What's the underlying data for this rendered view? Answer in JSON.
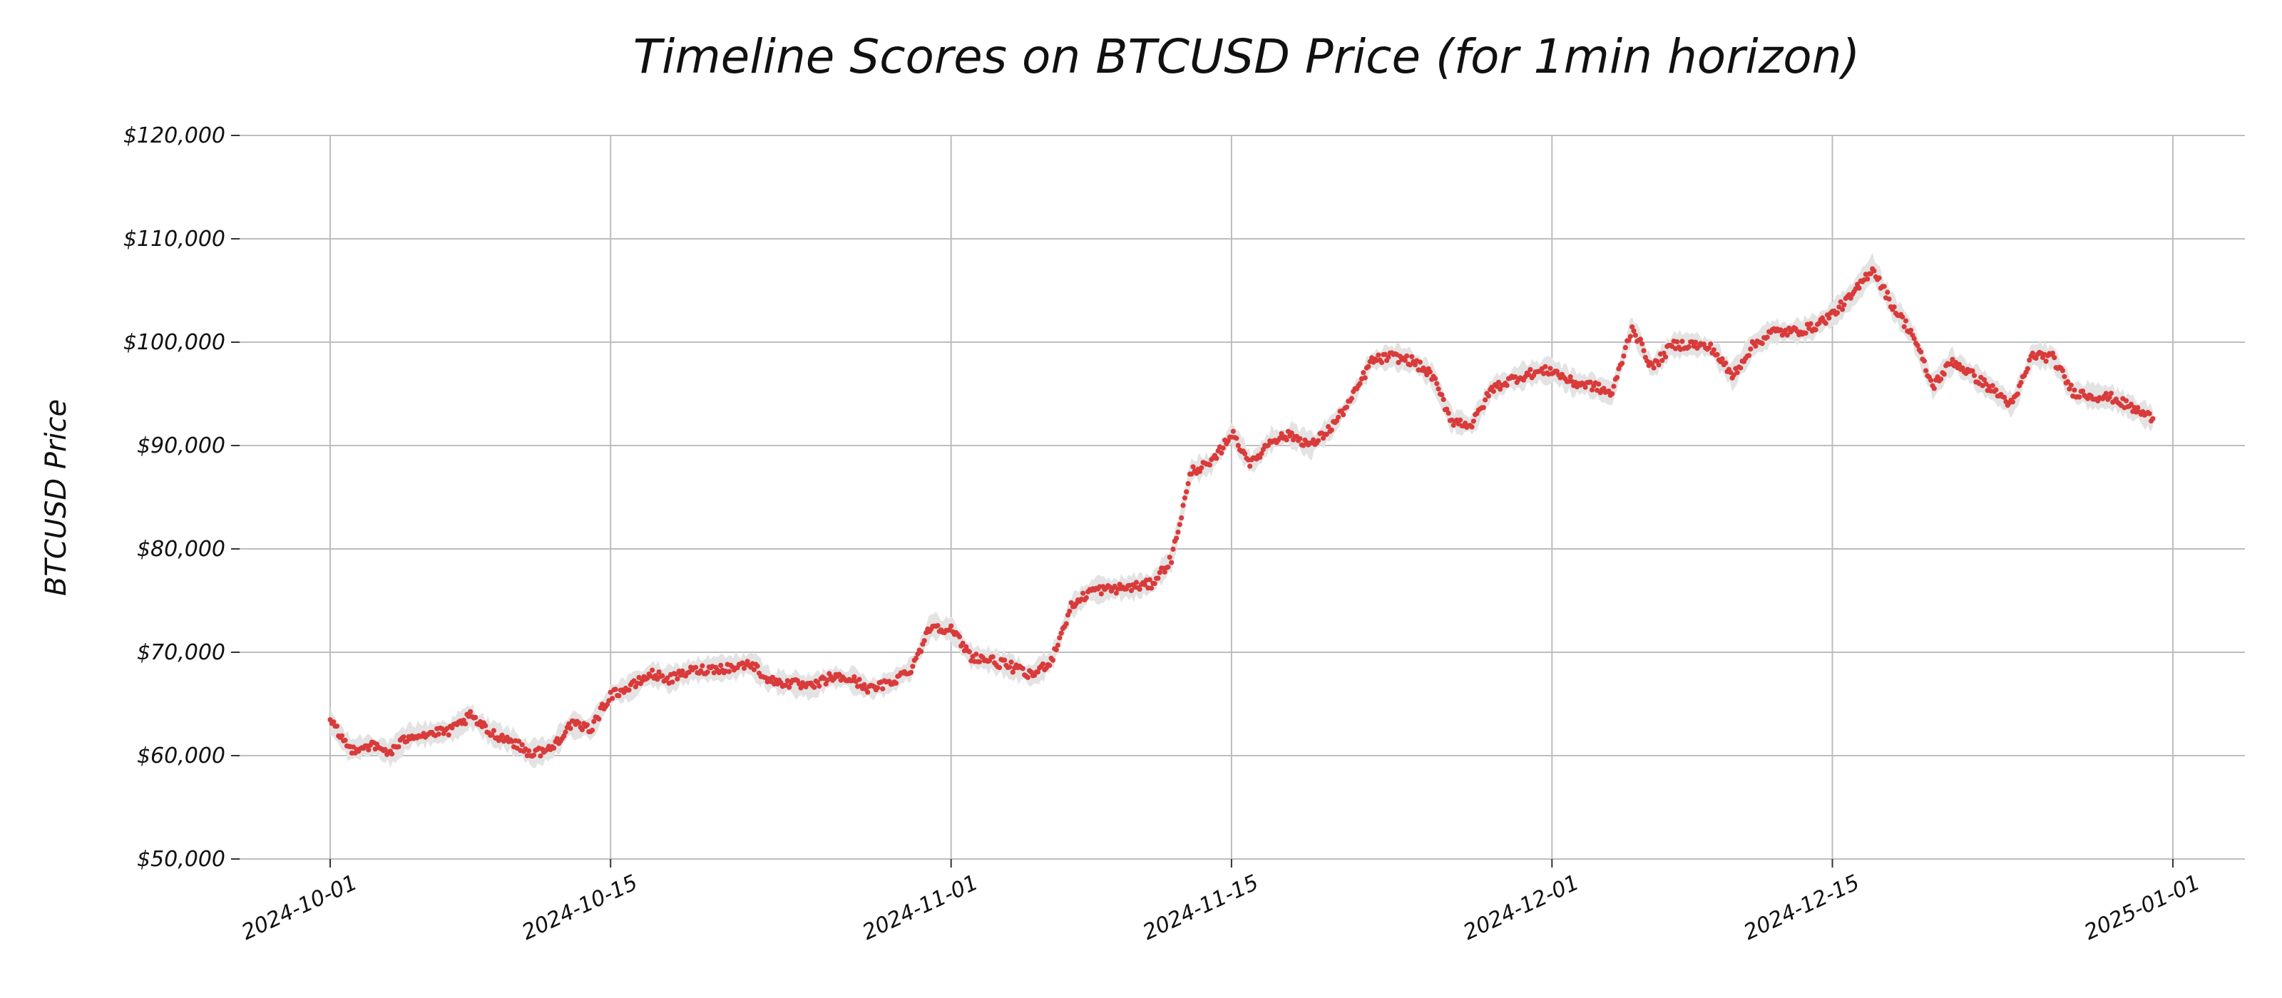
{
  "chart_data": {
    "type": "scatter",
    "title": "Timeline Scores on BTCUSD Price (for 1min horizon)",
    "xlabel": "",
    "ylabel": "BTCUSD Price",
    "x_type": "date",
    "xlim": [
      "2024-10-01",
      "2025-01-01"
    ],
    "ylim": [
      50000,
      120000
    ],
    "grid": true,
    "y_ticks": [
      50000,
      60000,
      70000,
      80000,
      90000,
      100000,
      110000,
      120000
    ],
    "y_tick_labels": [
      "$50,000",
      "$60,000",
      "$70,000",
      "$80,000",
      "$90,000",
      "$100,000",
      "$110,000",
      "$120,000"
    ],
    "x_ticks": [
      "2024-10-01",
      "2024-10-15",
      "2024-11-01",
      "2024-11-15",
      "2024-12-01",
      "2024-12-15",
      "2025-01-01"
    ],
    "x_tick_labels": [
      "2024-10-01",
      "2024-10-15",
      "2024-11-01",
      "2024-11-15",
      "2024-12-01",
      "2024-12-15",
      "2025-01-01"
    ],
    "colors": {
      "points": "#d93a3a",
      "price_band": "#e3e3e3"
    },
    "series": [
      {
        "values": [
          {
            "x": "2024-10-01",
            "y": 63300
          },
          {
            "x": "2024-10-02",
            "y": 60600
          },
          {
            "x": "2024-10-03",
            "y": 61000
          },
          {
            "x": "2024-10-04",
            "y": 60300
          },
          {
            "x": "2024-10-05",
            "y": 62000
          },
          {
            "x": "2024-10-06",
            "y": 62100
          },
          {
            "x": "2024-10-07",
            "y": 62400
          },
          {
            "x": "2024-10-08",
            "y": 63800
          },
          {
            "x": "2024-10-09",
            "y": 62200
          },
          {
            "x": "2024-10-10",
            "y": 61500
          },
          {
            "x": "2024-10-11",
            "y": 60200
          },
          {
            "x": "2024-10-12",
            "y": 60600
          },
          {
            "x": "2024-10-13",
            "y": 63000
          },
          {
            "x": "2024-10-14",
            "y": 62600
          },
          {
            "x": "2024-10-15",
            "y": 65900
          },
          {
            "x": "2024-10-16",
            "y": 66600
          },
          {
            "x": "2024-10-17",
            "y": 67900
          },
          {
            "x": "2024-10-18",
            "y": 67400
          },
          {
            "x": "2024-10-19",
            "y": 68200
          },
          {
            "x": "2024-10-20",
            "y": 68400
          },
          {
            "x": "2024-10-21",
            "y": 68500
          },
          {
            "x": "2024-10-22",
            "y": 68900
          },
          {
            "x": "2024-10-23",
            "y": 67200
          },
          {
            "x": "2024-10-24",
            "y": 67000
          },
          {
            "x": "2024-10-25",
            "y": 66600
          },
          {
            "x": "2024-10-26",
            "y": 67600
          },
          {
            "x": "2024-10-27",
            "y": 67400
          },
          {
            "x": "2024-10-28",
            "y": 66400
          },
          {
            "x": "2024-10-29",
            "y": 67100
          },
          {
            "x": "2024-10-30",
            "y": 68400
          },
          {
            "x": "2024-10-31",
            "y": 72600
          },
          {
            "x": "2024-11-01",
            "y": 72200
          },
          {
            "x": "2024-11-02",
            "y": 69600
          },
          {
            "x": "2024-11-03",
            "y": 69200
          },
          {
            "x": "2024-11-04",
            "y": 68600
          },
          {
            "x": "2024-11-05",
            "y": 67700
          },
          {
            "x": "2024-11-06",
            "y": 69200
          },
          {
            "x": "2024-11-07",
            "y": 74400
          },
          {
            "x": "2024-11-08",
            "y": 76000
          },
          {
            "x": "2024-11-09",
            "y": 76100
          },
          {
            "x": "2024-11-10",
            "y": 76300
          },
          {
            "x": "2024-11-11",
            "y": 76600
          },
          {
            "x": "2024-11-12",
            "y": 79000
          },
          {
            "x": "2024-11-13",
            "y": 87600
          },
          {
            "x": "2024-11-14",
            "y": 88200
          },
          {
            "x": "2024-11-15",
            "y": 91200
          },
          {
            "x": "2024-11-16",
            "y": 88200
          },
          {
            "x": "2024-11-17",
            "y": 90600
          },
          {
            "x": "2024-11-18",
            "y": 91000
          },
          {
            "x": "2024-11-19",
            "y": 90000
          },
          {
            "x": "2024-11-20",
            "y": 91800
          },
          {
            "x": "2024-11-21",
            "y": 94500
          },
          {
            "x": "2024-11-22",
            "y": 98200
          },
          {
            "x": "2024-11-23",
            "y": 98600
          },
          {
            "x": "2024-11-24",
            "y": 98200
          },
          {
            "x": "2024-11-25",
            "y": 96800
          },
          {
            "x": "2024-11-26",
            "y": 92400
          },
          {
            "x": "2024-11-27",
            "y": 92000
          },
          {
            "x": "2024-11-28",
            "y": 95500
          },
          {
            "x": "2024-11-29",
            "y": 96400
          },
          {
            "x": "2024-11-30",
            "y": 97000
          },
          {
            "x": "2024-12-01",
            "y": 97300
          },
          {
            "x": "2024-12-02",
            "y": 96100
          },
          {
            "x": "2024-12-03",
            "y": 95800
          },
          {
            "x": "2024-12-04",
            "y": 95000
          },
          {
            "x": "2024-12-05",
            "y": 101500
          },
          {
            "x": "2024-12-06",
            "y": 97500
          },
          {
            "x": "2024-12-07",
            "y": 99700
          },
          {
            "x": "2024-12-08",
            "y": 99800
          },
          {
            "x": "2024-12-09",
            "y": 99400
          },
          {
            "x": "2024-12-10",
            "y": 96700
          },
          {
            "x": "2024-12-11",
            "y": 99600
          },
          {
            "x": "2024-12-12",
            "y": 101000
          },
          {
            "x": "2024-12-13",
            "y": 101000
          },
          {
            "x": "2024-12-14",
            "y": 101400
          },
          {
            "x": "2024-12-15",
            "y": 102700
          },
          {
            "x": "2024-12-16",
            "y": 104500
          },
          {
            "x": "2024-12-17",
            "y": 107200
          },
          {
            "x": "2024-12-18",
            "y": 103500
          },
          {
            "x": "2024-12-19",
            "y": 100800
          },
          {
            "x": "2024-12-20",
            "y": 95700
          },
          {
            "x": "2024-12-21",
            "y": 98200
          },
          {
            "x": "2024-12-22",
            "y": 96800
          },
          {
            "x": "2024-12-23",
            "y": 95400
          },
          {
            "x": "2024-12-24",
            "y": 93900
          },
          {
            "x": "2024-12-25",
            "y": 98800
          },
          {
            "x": "2024-12-26",
            "y": 98500
          },
          {
            "x": "2024-12-27",
            "y": 95200
          },
          {
            "x": "2024-12-28",
            "y": 94800
          },
          {
            "x": "2024-12-29",
            "y": 94600
          },
          {
            "x": "2024-12-30",
            "y": 93600
          },
          {
            "x": "2024-12-31",
            "y": 92600
          }
        ]
      }
    ]
  }
}
